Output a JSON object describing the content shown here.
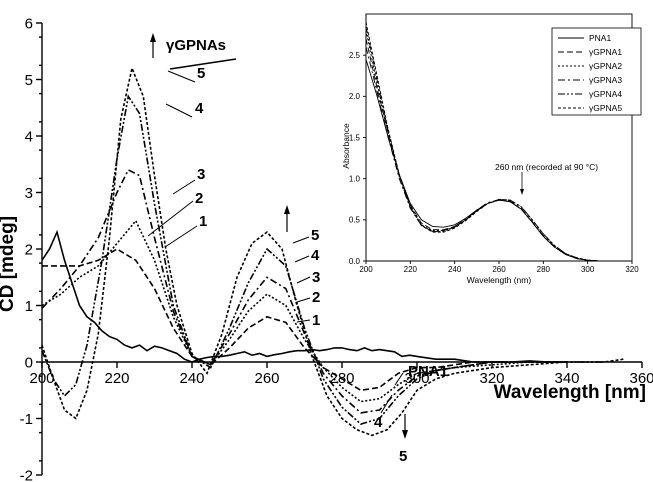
{
  "chart_data": [
    {
      "type": "line",
      "xlabel": "Wavelength [nm]",
      "ylabel": "CD [mdeg]",
      "xlim": [
        200,
        360
      ],
      "ylim": [
        -2,
        6
      ],
      "xticks": [
        200,
        220,
        240,
        260,
        280,
        300,
        320,
        340,
        360
      ],
      "yticks": [
        -2,
        -1,
        0,
        1,
        2,
        3,
        4,
        5,
        6
      ],
      "series": [
        {
          "name": "PNA1",
          "style": "solid",
          "x": [
            200,
            202,
            204,
            206,
            208,
            210,
            212,
            214,
            216,
            218,
            220,
            222,
            224,
            226,
            228,
            230,
            232,
            234,
            236,
            238,
            240,
            242,
            244,
            246,
            248,
            250,
            252,
            254,
            256,
            258,
            260,
            262,
            264,
            266,
            268,
            270,
            272,
            274,
            276,
            278,
            280,
            282,
            284,
            286,
            288,
            290,
            292,
            294,
            296,
            298,
            300,
            305,
            310,
            315,
            320,
            325,
            330,
            335,
            340
          ],
          "y": [
            1.8,
            2.0,
            2.3,
            1.8,
            1.4,
            1.0,
            0.8,
            0.7,
            0.55,
            0.45,
            0.4,
            0.3,
            0.25,
            0.3,
            0.2,
            0.28,
            0.25,
            0.2,
            0.15,
            0.05,
            0.0,
            0.05,
            0.08,
            0.1,
            0.1,
            0.12,
            0.15,
            0.18,
            0.12,
            0.15,
            0.1,
            0.13,
            0.15,
            0.18,
            0.2,
            0.2,
            0.22,
            0.2,
            0.22,
            0.25,
            0.25,
            0.22,
            0.2,
            0.25,
            0.2,
            0.22,
            0.2,
            0.18,
            0.1,
            0.12,
            0.1,
            0.05,
            0.05,
            0.0,
            0.0,
            0.0,
            0.02,
            0.0,
            0.0
          ]
        },
        {
          "name": "γGPNA1",
          "style": "dash",
          "x": [
            200,
            205,
            210,
            215,
            220,
            225,
            230,
            235,
            240,
            245,
            250,
            255,
            260,
            265,
            270,
            275,
            280,
            285,
            290,
            295,
            300,
            305,
            310,
            315,
            320,
            330,
            340
          ],
          "y": [
            1.7,
            1.7,
            1.7,
            1.8,
            2.0,
            1.8,
            1.3,
            0.6,
            0.1,
            -0.05,
            0.25,
            0.6,
            0.8,
            0.7,
            0.25,
            -0.1,
            -0.3,
            -0.5,
            -0.45,
            -0.2,
            -0.1,
            -0.1,
            -0.05,
            0.0,
            0.0,
            0.0,
            0.0
          ]
        },
        {
          "name": "γGPNA2",
          "style": "dot",
          "x": [
            200,
            205,
            210,
            215,
            220,
            225,
            230,
            235,
            240,
            245,
            250,
            255,
            260,
            265,
            270,
            275,
            280,
            285,
            290,
            295,
            300,
            305,
            310,
            320,
            330,
            340
          ],
          "y": [
            1.0,
            1.2,
            1.5,
            1.7,
            2.1,
            2.5,
            1.8,
            0.8,
            0.1,
            -0.05,
            0.4,
            0.9,
            1.2,
            1.0,
            0.4,
            -0.1,
            -0.45,
            -0.7,
            -0.65,
            -0.4,
            -0.2,
            -0.15,
            -0.1,
            -0.05,
            0.0,
            0.0
          ]
        },
        {
          "name": "γGPNA3",
          "style": "dashdot",
          "x": [
            200,
            205,
            210,
            215,
            220,
            223,
            226,
            230,
            235,
            240,
            245,
            250,
            255,
            260,
            265,
            270,
            275,
            280,
            285,
            290,
            295,
            300,
            305,
            310,
            320,
            330,
            340
          ],
          "y": [
            0.95,
            1.3,
            1.7,
            2.2,
            3.0,
            3.4,
            3.3,
            2.2,
            0.9,
            0.1,
            -0.05,
            0.5,
            1.1,
            1.5,
            1.3,
            0.5,
            -0.2,
            -0.6,
            -0.9,
            -0.85,
            -0.5,
            -0.25,
            -0.15,
            -0.1,
            0.0,
            0.0,
            0.0
          ]
        },
        {
          "name": "γGPNA4",
          "style": "dashdotdot",
          "x": [
            200,
            203,
            206,
            209,
            212,
            216,
            220,
            223,
            226,
            230,
            235,
            240,
            245,
            250,
            255,
            260,
            265,
            270,
            275,
            280,
            285,
            290,
            295,
            300,
            305,
            310,
            320,
            330,
            340,
            350
          ],
          "y": [
            0.2,
            -0.3,
            -0.6,
            -0.4,
            0.3,
            1.8,
            3.6,
            4.7,
            4.4,
            2.8,
            1.0,
            0.1,
            -0.1,
            0.6,
            1.4,
            2.0,
            1.7,
            0.6,
            -0.3,
            -0.8,
            -1.1,
            -1.0,
            -0.6,
            -0.3,
            -0.15,
            -0.1,
            0.0,
            0.0,
            0.0,
            0.0
          ]
        },
        {
          "name": "γGPNA5",
          "style": "shortdot",
          "x": [
            200,
            203,
            206,
            209,
            212,
            215,
            218,
            221,
            224,
            227,
            230,
            233,
            236,
            240,
            244,
            248,
            252,
            256,
            260,
            264,
            268,
            272,
            276,
            280,
            284,
            288,
            292,
            296,
            300,
            305,
            310,
            320,
            330,
            340,
            350,
            355
          ],
          "y": [
            0.3,
            -0.3,
            -0.85,
            -1.0,
            -0.5,
            0.5,
            2.2,
            4.3,
            5.2,
            4.7,
            3.3,
            2.0,
            1.0,
            0.15,
            -0.2,
            0.5,
            1.5,
            2.1,
            2.3,
            2.0,
            1.0,
            0.1,
            -0.6,
            -1.0,
            -1.2,
            -1.3,
            -1.2,
            -0.9,
            -0.5,
            -0.3,
            -0.2,
            -0.1,
            -0.05,
            0.0,
            0.0,
            0.05
          ]
        }
      ]
    },
    {
      "type": "line",
      "inset": true,
      "xlabel": "Wavelength (nm)",
      "ylabel": "Absorbance",
      "xlim": [
        200,
        320
      ],
      "ylim": [
        0.0,
        3.0
      ],
      "xticks": [
        200,
        220,
        240,
        260,
        280,
        300,
        320
      ],
      "yticks": [
        0.0,
        0.5,
        1.0,
        1.5,
        2.0,
        2.5
      ],
      "series": [
        {
          "name": "PNA1",
          "style": "solid",
          "x": [
            200,
            205,
            210,
            215,
            220,
            225,
            230,
            235,
            240,
            245,
            250,
            255,
            260,
            265,
            270,
            275,
            280,
            285,
            290,
            295,
            300,
            305,
            310
          ],
          "y": [
            2.45,
            2.0,
            1.5,
            1.05,
            0.7,
            0.5,
            0.42,
            0.41,
            0.44,
            0.52,
            0.62,
            0.7,
            0.74,
            0.72,
            0.63,
            0.47,
            0.3,
            0.17,
            0.08,
            0.03,
            0.01,
            0.0,
            0.0
          ]
        },
        {
          "name": "γGPNA1",
          "style": "dash",
          "x": [
            200,
            205,
            210,
            215,
            220,
            225,
            230,
            235,
            240,
            245,
            250,
            255,
            260,
            265,
            270,
            275,
            280,
            285,
            290,
            295,
            300,
            305,
            310
          ],
          "y": [
            2.7,
            2.1,
            1.55,
            1.05,
            0.68,
            0.46,
            0.38,
            0.38,
            0.42,
            0.5,
            0.61,
            0.7,
            0.74,
            0.72,
            0.63,
            0.47,
            0.3,
            0.17,
            0.08,
            0.03,
            0.01,
            0.0,
            0.0
          ]
        },
        {
          "name": "γGPNA2",
          "style": "dot",
          "x": [
            200,
            205,
            210,
            215,
            220,
            225,
            230,
            235,
            240,
            245,
            250,
            255,
            260,
            265,
            270,
            275,
            280,
            285,
            290,
            295,
            300,
            305,
            310
          ],
          "y": [
            2.8,
            2.15,
            1.55,
            1.02,
            0.65,
            0.44,
            0.37,
            0.37,
            0.41,
            0.5,
            0.61,
            0.7,
            0.74,
            0.72,
            0.63,
            0.47,
            0.3,
            0.17,
            0.08,
            0.03,
            0.01,
            0.0,
            0.0
          ]
        },
        {
          "name": "γGPNA3",
          "style": "dashdot",
          "x": [
            200,
            205,
            210,
            215,
            220,
            225,
            230,
            235,
            240,
            245,
            250,
            255,
            260,
            265,
            270,
            275,
            280,
            285,
            290,
            295,
            300,
            305,
            310
          ],
          "y": [
            2.6,
            2.05,
            1.5,
            1.0,
            0.64,
            0.43,
            0.36,
            0.37,
            0.42,
            0.51,
            0.62,
            0.71,
            0.74,
            0.73,
            0.64,
            0.48,
            0.31,
            0.18,
            0.09,
            0.03,
            0.01,
            0.0,
            0.0
          ]
        },
        {
          "name": "γGPNA4",
          "style": "dashdotdot",
          "x": [
            200,
            205,
            210,
            215,
            220,
            225,
            230,
            235,
            240,
            245,
            250,
            255,
            260,
            265,
            270,
            275,
            280,
            285,
            290,
            295,
            300,
            305,
            310
          ],
          "y": [
            2.85,
            2.2,
            1.58,
            1.04,
            0.66,
            0.44,
            0.36,
            0.36,
            0.41,
            0.5,
            0.61,
            0.7,
            0.75,
            0.74,
            0.66,
            0.5,
            0.33,
            0.19,
            0.09,
            0.04,
            0.01,
            0.0,
            0.0
          ]
        },
        {
          "name": "γGPNA5",
          "style": "shortdot",
          "x": [
            200,
            205,
            210,
            215,
            220,
            225,
            230,
            235,
            240,
            245,
            250,
            255,
            260,
            265,
            270,
            275,
            280,
            285,
            290,
            295,
            300,
            305,
            310
          ],
          "y": [
            2.9,
            2.25,
            1.6,
            1.05,
            0.66,
            0.43,
            0.35,
            0.35,
            0.4,
            0.49,
            0.6,
            0.7,
            0.75,
            0.74,
            0.66,
            0.5,
            0.33,
            0.19,
            0.09,
            0.04,
            0.01,
            0.0,
            0.0
          ]
        }
      ],
      "annotation": "260 nm (recorded at 90 °C)"
    }
  ],
  "annotations": {
    "group_title": "γGPNAs",
    "pna1_label": "PNA1",
    "peak1_labels": [
      "5",
      "4",
      "3",
      "2",
      "1"
    ],
    "peak2_labels": [
      "5",
      "4",
      "3",
      "2",
      "1"
    ],
    "trough_labels": [
      "4",
      "5"
    ]
  },
  "dash_styles": {
    "solid": "",
    "dash": "6 3",
    "dot": "2 2",
    "dashdot": "7 3 2 3",
    "dashdotdot": "7 2 2 2 2 2",
    "shortdot": "3 2"
  }
}
